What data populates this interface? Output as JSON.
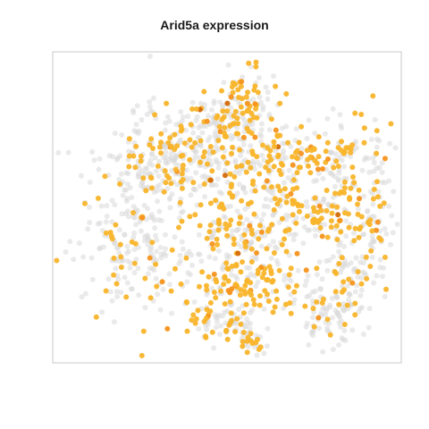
{
  "chart_data": {
    "type": "scatter",
    "title": "Arid5a expression",
    "xlabel": "",
    "ylabel": "",
    "grid": false,
    "legend": "none",
    "colors": {
      "background_cells": "#d9d9d9",
      "expressing_cells": "#f9b52b",
      "high_expression_cells": "#f7941d",
      "max_expression_cells": "#d46a0a",
      "panel_border": "#c8c8c8"
    },
    "series": [
      {
        "clusters": [
          {
            "cx": -18,
            "cy": 12,
            "sx": 9,
            "sy": 11,
            "n": 220,
            "p_expr": 0.22
          },
          {
            "cx": -14,
            "cy": -8,
            "sx": 8,
            "sy": 8,
            "n": 200,
            "p_expr": 0.18
          },
          {
            "cx": -4,
            "cy": -14,
            "sx": 9,
            "sy": 6,
            "n": 150,
            "p_expr": 0.3
          },
          {
            "cx": 3,
            "cy": 9,
            "sx": 5,
            "sy": 5,
            "n": 110,
            "p_expr": 0.45
          },
          {
            "cx": 4,
            "cy": 21,
            "sx": 7,
            "sy": 4,
            "n": 120,
            "p_expr": 0.6
          },
          {
            "cx": 0,
            "cy": 30,
            "sx": 5,
            "sy": 3,
            "n": 80,
            "p_expr": 0.45
          },
          {
            "cx": 5,
            "cy": 35,
            "sx": 2,
            "sy": 2,
            "n": 30,
            "p_expr": 0.55
          },
          {
            "cx": 20,
            "cy": 28,
            "sx": 5,
            "sy": 5,
            "n": 100,
            "p_expr": 0.25
          },
          {
            "cx": 25,
            "cy": 18,
            "sx": 4,
            "sy": 4,
            "n": 60,
            "p_expr": 0.3
          },
          {
            "cx": 20,
            "cy": 5,
            "sx": 9,
            "sy": 6,
            "n": 160,
            "p_expr": 0.45
          },
          {
            "cx": 13,
            "cy": -8,
            "sx": 5,
            "sy": 5,
            "n": 90,
            "p_expr": 0.5
          },
          {
            "cx": 25,
            "cy": -8,
            "sx": 6,
            "sy": 6,
            "n": 120,
            "p_expr": 0.4
          },
          {
            "cx": 3,
            "cy": -4,
            "sx": 6,
            "sy": 8,
            "n": 110,
            "p_expr": 0.4
          },
          {
            "cx": 4,
            "cy": -24,
            "sx": 4,
            "sy": 5,
            "n": 70,
            "p_expr": 0.55
          },
          {
            "cx": -2,
            "cy": -20,
            "sx": 4,
            "sy": 3,
            "n": 50,
            "p_expr": 0.3
          },
          {
            "cx": 30,
            "cy": 8,
            "sx": 3,
            "sy": 3,
            "n": 30,
            "p_expr": 0.25
          }
        ],
        "seed": 7
      }
    ],
    "xlim": [
      -35,
      35
    ],
    "ylim": [
      -35,
      40
    ]
  }
}
